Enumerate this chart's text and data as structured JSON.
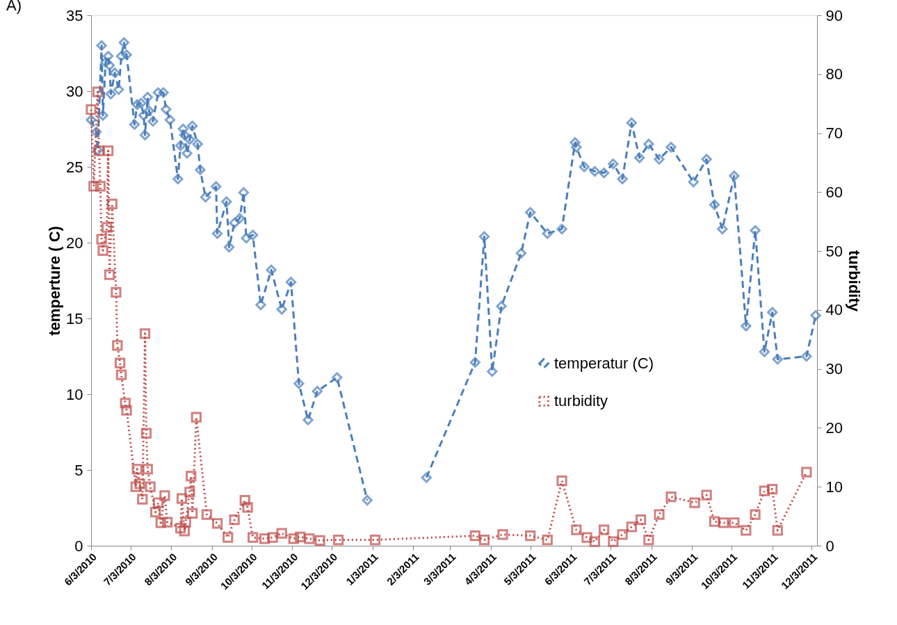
{
  "chart_data": {
    "type": "line",
    "annotations": [
      "A)"
    ],
    "ylabel": "temperture ( C)",
    "y2label": "turbidity",
    "xlim": [
      "2010-06-03",
      "2011-12-07"
    ],
    "xticks": [
      {
        "value": "2010-06-03",
        "label": "6/3/2010"
      },
      {
        "value": "2010-07-03",
        "label": "7/3/2010"
      },
      {
        "value": "2010-08-03",
        "label": "8/3/2010"
      },
      {
        "value": "2010-09-03",
        "label": "9/3/2010"
      },
      {
        "value": "2010-10-03",
        "label": "10/3/2010"
      },
      {
        "value": "2010-11-03",
        "label": "11/3/2010"
      },
      {
        "value": "2010-12-03",
        "label": "12/3/2010"
      },
      {
        "value": "2011-01-03",
        "label": "1/3/2011"
      },
      {
        "value": "2011-02-03",
        "label": "2/3/2011"
      },
      {
        "value": "2011-03-03",
        "label": "3/3/2011"
      },
      {
        "value": "2011-04-03",
        "label": "4/3/2011"
      },
      {
        "value": "2011-05-03",
        "label": "5/3/2011"
      },
      {
        "value": "2011-06-03",
        "label": "6/3/2011"
      },
      {
        "value": "2011-07-03",
        "label": "7/3/2011"
      },
      {
        "value": "2011-08-03",
        "label": "8/3/2011"
      },
      {
        "value": "2011-09-03",
        "label": "9/3/2011"
      },
      {
        "value": "2011-10-03",
        "label": "10/3/2011"
      },
      {
        "value": "2011-11-03",
        "label": "11/3/2011"
      },
      {
        "value": "2011-12-03",
        "label": "12/3/2011"
      }
    ],
    "ylim": [
      0,
      35
    ],
    "yticks": [
      0,
      5,
      10,
      15,
      20,
      25,
      30,
      35
    ],
    "y2lim": [
      0,
      90
    ],
    "y2ticks": [
      0,
      10,
      20,
      30,
      40,
      50,
      60,
      70,
      80,
      90
    ],
    "grid": false,
    "legend": "right",
    "series": [
      {
        "name": "temperatur (C)",
        "color": "#4a7ebb",
        "marker": "diamond",
        "line_style": "dashed",
        "x": [
          "2010-06-03",
          "2010-06-07",
          "2010-06-08",
          "2010-06-11",
          "2010-06-12",
          "2010-06-14",
          "2010-06-16",
          "2010-06-17",
          "2010-06-18",
          "2010-06-21",
          "2010-06-24",
          "2010-06-26",
          "2010-06-28",
          "2010-06-30",
          "2010-07-06",
          "2010-07-08",
          "2010-07-11",
          "2010-07-13",
          "2010-07-14",
          "2010-07-16",
          "2010-07-17",
          "2010-07-20",
          "2010-07-24",
          "2010-07-28",
          "2010-07-30",
          "2010-08-02",
          "2010-08-08",
          "2010-08-10",
          "2010-08-12",
          "2010-08-13",
          "2010-08-15",
          "2010-08-17",
          "2010-08-19",
          "2010-08-23",
          "2010-08-25",
          "2010-08-29",
          "2010-09-06",
          "2010-09-07",
          "2010-09-14",
          "2010-09-16",
          "2010-09-20",
          "2010-09-24",
          "2010-09-27",
          "2010-09-29",
          "2010-10-04",
          "2010-10-10",
          "2010-10-18",
          "2010-10-26",
          "2010-11-02",
          "2010-11-08",
          "2010-11-15",
          "2010-11-22",
          "2010-12-07",
          "2010-12-30",
          "2011-01-20",
          "2011-02-13",
          "2011-03-22",
          "2011-03-29",
          "2011-04-04",
          "2011-04-11",
          "2011-04-26",
          "2011-05-03",
          "2011-05-16",
          "2011-05-27",
          "2011-06-06",
          "2011-06-07",
          "2011-06-13",
          "2011-06-21",
          "2011-06-28",
          "2011-07-05",
          "2011-07-12",
          "2011-07-19",
          "2011-07-25",
          "2011-08-01",
          "2011-08-09",
          "2011-08-18",
          "2011-09-04",
          "2011-09-14",
          "2011-09-20",
          "2011-09-26",
          "2011-10-05",
          "2011-10-14",
          "2011-10-21",
          "2011-10-28",
          "2011-11-03",
          "2011-11-07",
          "2011-11-29",
          "2011-12-06"
        ],
        "values": [
          28.1,
          27.3,
          26.1,
          33.0,
          28.4,
          31.9,
          32.3,
          31.7,
          29.8,
          31.2,
          30.1,
          32.3,
          33.2,
          32.4,
          27.8,
          29.1,
          29.2,
          28.4,
          27.1,
          29.6,
          28.7,
          28.0,
          29.9,
          29.9,
          28.8,
          28.1,
          24.2,
          26.4,
          27.5,
          27.1,
          25.9,
          26.8,
          27.7,
          26.5,
          24.8,
          23.0,
          23.7,
          20.6,
          22.7,
          19.7,
          21.3,
          21.6,
          23.3,
          20.3,
          20.5,
          15.9,
          18.2,
          15.6,
          17.4,
          10.7,
          8.3,
          10.2,
          11.1,
          3.0,
          null,
          4.5,
          12.1,
          20.4,
          11.5,
          15.8,
          19.3,
          22.0,
          20.6,
          20.9,
          26.6,
          26.3,
          25.0,
          24.7,
          24.6,
          25.2,
          24.2,
          27.9,
          25.6,
          26.5,
          25.5,
          26.3,
          24.0,
          25.5,
          22.5,
          20.9,
          24.4,
          14.5,
          20.8,
          12.8,
          15.4,
          12.3,
          12.5,
          15.2
        ]
      },
      {
        "name": "turbidity",
        "color": "#be4b48",
        "marker": "square",
        "line_style": "dotted",
        "axis": "y2",
        "x": [
          "2010-06-03",
          "2010-06-05",
          "2010-06-08",
          "2010-06-09",
          "2010-06-10",
          "2010-06-11",
          "2010-06-12",
          "2010-06-15",
          "2010-06-16",
          "2010-06-17",
          "2010-06-19",
          "2010-06-22",
          "2010-06-23",
          "2010-06-25",
          "2010-06-26",
          "2010-06-29",
          "2010-06-30",
          "2010-07-07",
          "2010-07-08",
          "2010-07-10",
          "2010-07-12",
          "2010-07-14",
          "2010-07-15",
          "2010-07-16",
          "2010-07-18",
          "2010-07-22",
          "2010-07-24",
          "2010-07-26",
          "2010-07-29",
          "2010-07-31",
          "2010-08-10",
          "2010-08-11",
          "2010-08-13",
          "2010-08-14",
          "2010-08-17",
          "2010-08-18",
          "2010-08-19",
          "2010-08-22",
          "2010-08-30",
          "2010-09-07",
          "2010-09-15",
          "2010-09-20",
          "2010-09-28",
          "2010-09-30",
          "2010-10-04",
          "2010-10-13",
          "2010-10-19",
          "2010-10-26",
          "2010-11-04",
          "2010-11-09",
          "2010-11-16",
          "2010-11-24",
          "2010-12-08",
          "2011-01-05",
          "2011-03-22",
          "2011-03-29",
          "2011-04-12",
          "2011-05-03",
          "2011-05-16",
          "2011-05-27",
          "2011-06-07",
          "2011-06-15",
          "2011-06-21",
          "2011-06-28",
          "2011-07-05",
          "2011-07-12",
          "2011-07-19",
          "2011-07-26",
          "2011-08-01",
          "2011-08-09",
          "2011-08-18",
          "2011-09-05",
          "2011-09-14",
          "2011-09-20",
          "2011-09-27",
          "2011-10-05",
          "2011-10-14",
          "2011-10-21",
          "2011-10-28",
          "2011-11-03",
          "2011-11-07",
          "2011-11-29"
        ],
        "values": [
          74.0,
          61.0,
          77.0,
          67.0,
          61.0,
          52.0,
          50.1,
          54.0,
          67.0,
          46.0,
          58.0,
          43.0,
          34.0,
          31.0,
          29.0,
          24.2,
          23.0,
          10.0,
          13.0,
          10.5,
          7.9,
          36.0,
          19.1,
          13.0,
          10.0,
          5.7,
          7.3,
          3.9,
          8.5,
          4.0,
          3.0,
          8.0,
          2.5,
          4.0,
          9.1,
          11.8,
          5.5,
          21.8,
          5.3,
          3.8,
          1.4,
          4.4,
          7.7,
          6.5,
          1.4,
          1.2,
          1.4,
          2.1,
          1.2,
          1.5,
          1.2,
          0.9,
          1.0,
          1.0,
          1.7,
          1.0,
          1.9,
          1.7,
          1.0,
          11.0,
          2.7,
          1.4,
          0.7,
          2.7,
          0.7,
          1.9,
          3.2,
          4.4,
          1.0,
          5.3,
          8.3,
          7.3,
          8.6,
          4.1,
          3.9,
          3.9,
          2.6,
          5.3,
          9.3,
          9.6,
          2.6,
          12.5
        ]
      }
    ]
  }
}
